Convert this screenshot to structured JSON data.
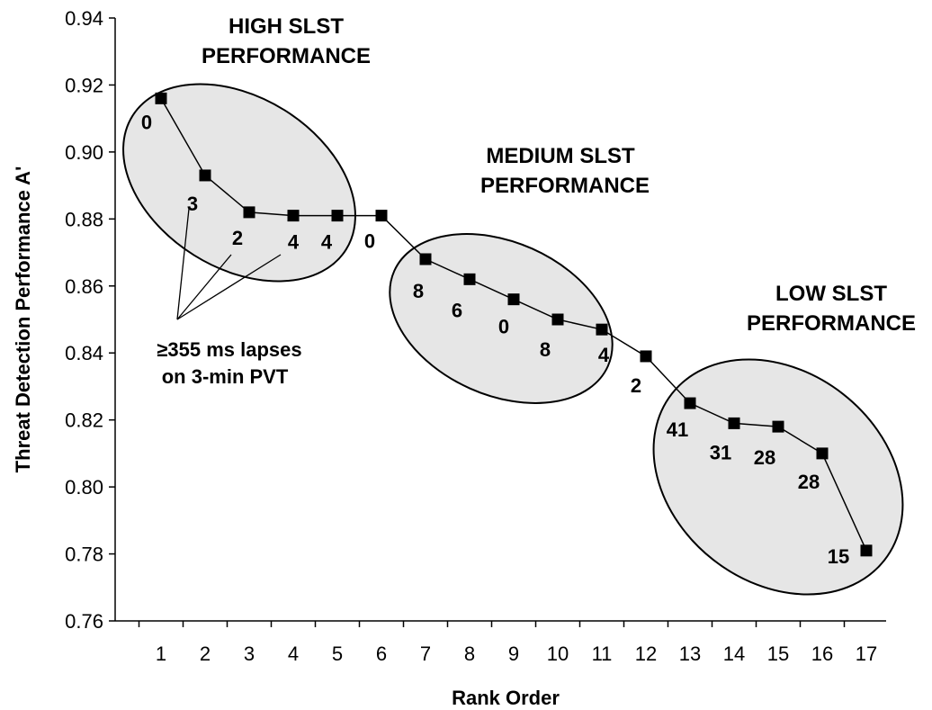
{
  "chart_data": {
    "type": "line",
    "xlabel": "Rank Order",
    "ylabel": "Threat Detection Performance A'",
    "ylim": [
      0.76,
      0.94
    ],
    "yticks": [
      "0.76",
      "0.78",
      "0.80",
      "0.82",
      "0.84",
      "0.86",
      "0.88",
      "0.90",
      "0.92",
      "0.94"
    ],
    "x": [
      1,
      2,
      3,
      4,
      5,
      6,
      7,
      8,
      9,
      10,
      11,
      12,
      13,
      14,
      15,
      16,
      17
    ],
    "xticks": [
      "1",
      "2",
      "3",
      "4",
      "5",
      "6",
      "7",
      "8",
      "9",
      "10",
      "11",
      "12",
      "13",
      "14",
      "15",
      "16",
      "17"
    ],
    "series": [
      {
        "values": [
          0.916,
          0.893,
          0.882,
          0.881,
          0.881,
          0.881,
          0.868,
          0.862,
          0.856,
          0.85,
          0.847,
          0.839,
          0.825,
          0.819,
          0.818,
          0.81,
          0.781
        ],
        "point_labels": [
          "0",
          "3",
          "2",
          "4",
          "4",
          "0",
          "8",
          "6",
          "0",
          "8",
          "4",
          "2",
          "41",
          "31",
          "28",
          "28",
          "15"
        ]
      }
    ],
    "groups": [
      {
        "label_lines": [
          "HIGH SLST",
          "PERFORMANCE"
        ]
      },
      {
        "label_lines": [
          "MEDIUM SLST",
          "PERFORMANCE"
        ]
      },
      {
        "label_lines": [
          "LOW SLST",
          "PERFORMANCE"
        ]
      }
    ],
    "callout": {
      "lines": [
        "≥355 ms lapses",
        "on 3-min PVT"
      ]
    },
    "grid": false,
    "marker": "square"
  },
  "colors": {
    "line": "#000000",
    "marker": "#000000",
    "ellipse_fill": "#e6e6e6",
    "ellipse_stroke": "#000000"
  }
}
